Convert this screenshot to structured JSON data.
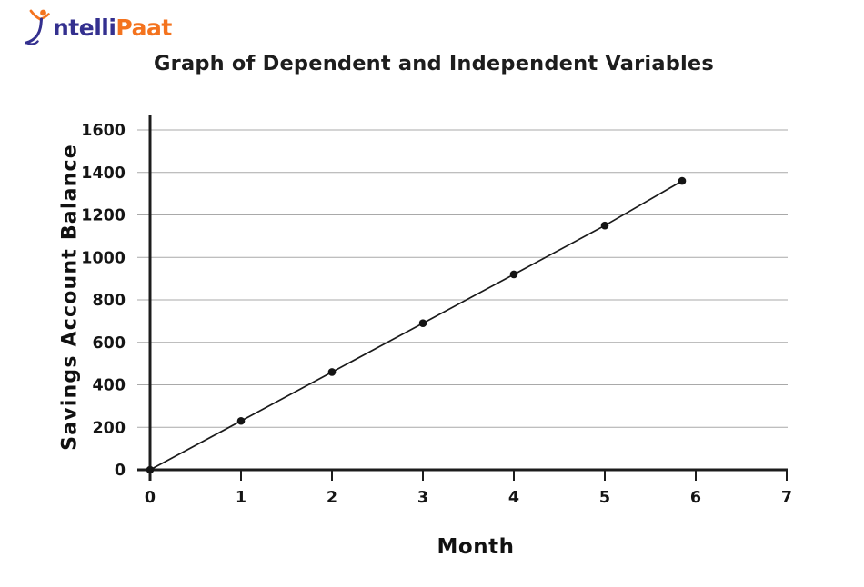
{
  "logo": {
    "name": "IntelliPaat",
    "text_indigo": "ntelli",
    "text_orange": "Paat",
    "indigo_color": "#34308f",
    "orange_color": "#f4731e"
  },
  "chart_data": {
    "type": "line",
    "title": "Graph of Dependent and Independent Variables",
    "xlabel": "Month",
    "ylabel": "Savings Account Balance",
    "x": [
      0,
      1,
      2,
      3,
      4,
      5,
      5.85
    ],
    "y": [
      0,
      230,
      460,
      690,
      920,
      1150,
      1360
    ],
    "xlim": [
      0,
      7
    ],
    "ylim": [
      0,
      1600
    ],
    "x_ticks": [
      0,
      1,
      2,
      3,
      4,
      5,
      6,
      7
    ],
    "y_ticks": [
      0,
      200,
      400,
      600,
      800,
      1000,
      1200,
      1400,
      1600
    ],
    "grid": true,
    "legend": "none",
    "line_color": "#1a1a1a",
    "marker_color": "#141414",
    "marker_size": 4.3,
    "grid_color": "#a9a9a9",
    "axis_color": "#1c1c1c",
    "tick_label_color": "#151515"
  }
}
